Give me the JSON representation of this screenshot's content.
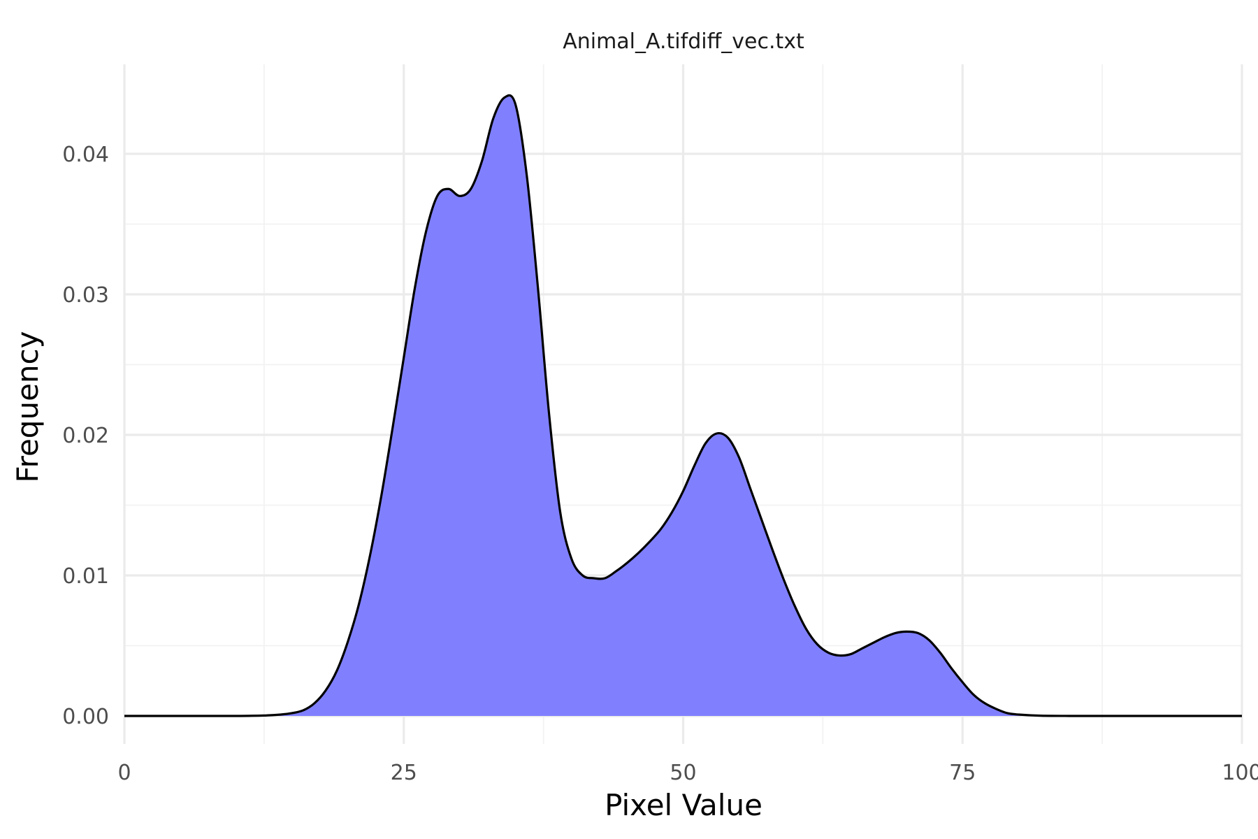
{
  "chart_data": {
    "type": "area",
    "title": "Animal_A.tifdiff_vec.txt",
    "xlabel": "Pixel Value",
    "ylabel": "Frequency",
    "xlim": [
      0,
      100
    ],
    "ylim": [
      0,
      0.045
    ],
    "x_ticks": [
      0,
      25,
      50,
      75,
      100
    ],
    "x_tick_labels": [
      "0",
      "25",
      "50",
      "75",
      "100"
    ],
    "y_ticks": [
      0,
      0.01,
      0.02,
      0.03,
      0.04
    ],
    "y_tick_labels": [
      "0.00",
      "0.01",
      "0.02",
      "0.03",
      "0.04"
    ],
    "grid": true,
    "fill_color": "#8080ff",
    "line_color": "#000000",
    "series": [
      {
        "x": [
          0,
          5,
          10,
          12.5,
          14,
          15,
          16,
          17,
          18,
          19,
          20,
          21,
          22,
          23,
          24,
          25,
          26,
          27,
          28,
          29,
          30,
          31,
          32,
          33,
          34,
          35,
          36,
          37,
          38,
          39,
          40,
          41,
          42,
          43,
          44,
          45,
          46,
          47,
          48,
          49,
          50,
          51,
          52,
          53,
          54,
          55,
          56,
          57,
          58,
          59,
          60,
          61,
          62,
          63,
          64,
          65,
          66,
          67,
          68,
          69,
          70,
          71,
          72,
          73,
          74,
          75,
          76,
          77,
          78,
          79,
          80,
          82,
          85,
          90,
          95,
          100
        ],
        "values": [
          0,
          0,
          0,
          3e-05,
          0.0001,
          0.0002,
          0.0004,
          0.0009,
          0.0018,
          0.0032,
          0.0053,
          0.008,
          0.0115,
          0.0157,
          0.0205,
          0.0255,
          0.0305,
          0.0345,
          0.037,
          0.0375,
          0.037,
          0.0375,
          0.0395,
          0.0425,
          0.044,
          0.0435,
          0.0385,
          0.0305,
          0.0215,
          0.0145,
          0.0112,
          0.01,
          0.0098,
          0.0098,
          0.0103,
          0.0109,
          0.0116,
          0.0124,
          0.0133,
          0.0145,
          0.016,
          0.0178,
          0.0194,
          0.0201,
          0.0198,
          0.0184,
          0.0162,
          0.014,
          0.0118,
          0.0097,
          0.0078,
          0.0062,
          0.0051,
          0.0045,
          0.0043,
          0.0044,
          0.0048,
          0.0052,
          0.0056,
          0.0059,
          0.006,
          0.0059,
          0.0054,
          0.0045,
          0.0034,
          0.0024,
          0.0015,
          0.0009,
          0.0005,
          0.0002,
          0.0001,
          2e-05,
          0,
          0,
          0,
          0
        ]
      }
    ]
  }
}
